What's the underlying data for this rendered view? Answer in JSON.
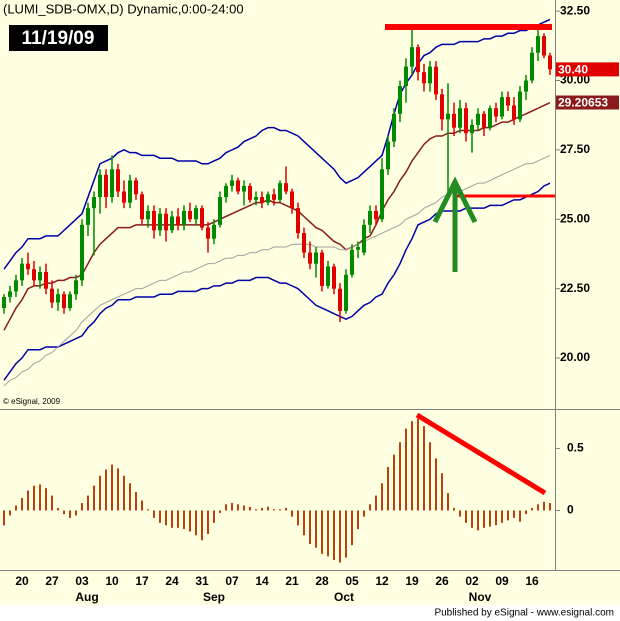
{
  "chart_data": [
    {
      "type": "candlestick",
      "title": "(LUMI_SDB-OMX,D) Dynamic,0:00-24:00",
      "date_label": "11/19/09",
      "credit": "© eSignal, 2009",
      "up_color": "#008a00",
      "down_color": "#e00000",
      "open": [
        21.8,
        22.2,
        22.4,
        22.8,
        23.4,
        23.2,
        22.8,
        23.1,
        22.5,
        22.0,
        22.3,
        21.8,
        22.3,
        22.8,
        24.8,
        25.4,
        25.8,
        26.6,
        25.8,
        26.8,
        26.0,
        25.6,
        26.4,
        25.9,
        25.0,
        25.3,
        24.6,
        25.2,
        24.6,
        25.1,
        24.8,
        25.3,
        25.0,
        25.4,
        24.7,
        24.3,
        24.8,
        25.8,
        26.2,
        26.4,
        26.0,
        26.2,
        25.7,
        25.8,
        25.6,
        25.9,
        25.7,
        26.3,
        26.0,
        25.4,
        24.5,
        23.8,
        23.4,
        23.8,
        22.6,
        23.3,
        22.5,
        21.7,
        23.0,
        23.9,
        23.8,
        24.8,
        25.3,
        25.0,
        26.8,
        27.8,
        28.8,
        29.8,
        30.5,
        31.2,
        30.3,
        29.9,
        30.5,
        29.5,
        28.6,
        28.8,
        28.3,
        29.0,
        28.1,
        28.4,
        28.8,
        28.3,
        29.0,
        28.7,
        29.4,
        29.1,
        28.6,
        29.6,
        30.0,
        31.0,
        31.6,
        30.9
      ],
      "high": [
        22.3,
        22.6,
        23.0,
        23.6,
        23.8,
        23.5,
        23.3,
        23.4,
        22.8,
        22.5,
        22.4,
        22.4,
        23.0,
        25.0,
        25.6,
        26.0,
        26.8,
        26.8,
        27.3,
        27.0,
        26.4,
        26.6,
        26.5,
        26.0,
        25.5,
        25.5,
        25.4,
        25.4,
        25.3,
        25.4,
        25.5,
        25.6,
        25.5,
        25.5,
        24.9,
        25.0,
        26.0,
        26.3,
        26.6,
        26.5,
        26.4,
        26.3,
        26.0,
        26.0,
        26.0,
        26.1,
        26.4,
        26.9,
        26.1,
        25.6,
        24.7,
        24.2,
        24.0,
        23.9,
        23.5,
        23.4,
        22.7,
        23.2,
        24.1,
        24.2,
        25.0,
        25.5,
        25.5,
        27.2,
        28.0,
        29.0,
        30.0,
        30.8,
        31.9,
        31.3,
        30.6,
        30.7,
        30.7,
        29.7,
        29.9,
        29.2,
        29.3,
        29.2,
        28.6,
        29.0,
        28.9,
        29.1,
        29.2,
        29.6,
        29.6,
        29.4,
        29.8,
        30.2,
        31.2,
        31.9,
        31.7,
        31.0
      ],
      "low": [
        21.6,
        22.0,
        22.2,
        22.6,
        23.0,
        22.6,
        22.5,
        22.3,
        21.8,
        21.7,
        21.6,
        21.7,
        22.1,
        22.6,
        24.4,
        23.7,
        25.2,
        25.4,
        25.6,
        25.8,
        25.4,
        25.4,
        25.7,
        24.8,
        24.7,
        24.3,
        24.4,
        24.2,
        24.5,
        24.6,
        24.6,
        24.9,
        24.8,
        24.6,
        23.8,
        24.1,
        24.7,
        25.6,
        26.0,
        25.9,
        25.5,
        25.6,
        25.5,
        25.4,
        25.5,
        25.5,
        25.6,
        25.9,
        25.2,
        24.3,
        23.6,
        23.2,
        22.9,
        22.4,
        22.5,
        22.3,
        21.3,
        21.6,
        22.9,
        23.6,
        23.7,
        24.5,
        24.8,
        24.9,
        26.6,
        27.6,
        28.5,
        29.2,
        30.2,
        30.0,
        29.6,
        29.6,
        29.3,
        28.2,
        26.0,
        28.0,
        28.1,
        27.8,
        27.4,
        28.2,
        28.0,
        28.2,
        28.5,
        28.6,
        28.9,
        28.4,
        28.5,
        29.3,
        29.9,
        30.7,
        30.8,
        30.2
      ],
      "close": [
        22.2,
        22.4,
        22.8,
        23.4,
        23.2,
        22.8,
        23.1,
        22.5,
        22.0,
        22.3,
        21.8,
        22.3,
        22.8,
        24.8,
        25.4,
        25.8,
        26.6,
        25.8,
        26.8,
        26.0,
        25.6,
        26.4,
        25.9,
        25.0,
        25.3,
        24.6,
        25.2,
        24.6,
        25.1,
        24.8,
        25.3,
        25.0,
        25.4,
        24.7,
        24.3,
        24.8,
        25.8,
        26.2,
        26.4,
        26.0,
        26.2,
        25.7,
        25.8,
        25.6,
        25.9,
        25.7,
        26.3,
        26.0,
        25.4,
        24.5,
        23.8,
        23.4,
        23.8,
        22.6,
        23.3,
        22.5,
        21.7,
        23.0,
        23.9,
        24.0,
        24.8,
        25.3,
        25.0,
        26.8,
        27.8,
        28.8,
        29.8,
        30.5,
        31.2,
        30.3,
        29.9,
        30.5,
        29.5,
        28.6,
        28.8,
        28.3,
        29.0,
        28.1,
        28.4,
        28.8,
        28.3,
        29.0,
        28.7,
        29.4,
        29.1,
        28.6,
        29.6,
        30.0,
        31.0,
        31.6,
        30.9,
        30.4
      ],
      "overlays": [
        {
          "color": "#0000a8",
          "values": [
            23.2,
            23.5,
            23.8,
            24.0,
            24.3,
            24.3,
            24.3,
            24.4,
            24.4,
            24.4,
            24.6,
            24.8,
            25.0,
            25.2,
            25.8,
            26.4,
            27.0,
            27.1,
            27.2,
            27.4,
            27.5,
            27.4,
            27.4,
            27.3,
            27.3,
            27.3,
            27.2,
            27.2,
            27.2,
            27.1,
            27.1,
            27.1,
            27.1,
            27.0,
            27.0,
            27.1,
            27.2,
            27.4,
            27.5,
            27.6,
            27.8,
            27.9,
            28.0,
            28.2,
            28.3,
            28.3,
            28.2,
            28.2,
            28.1,
            28.0,
            27.8,
            27.6,
            27.4,
            27.2,
            27.0,
            26.8,
            26.5,
            26.3,
            26.4,
            26.5,
            26.7,
            26.9,
            27.1,
            27.3,
            28.0,
            28.8,
            29.5,
            29.9,
            30.2,
            30.6,
            30.9,
            31.0,
            31.2,
            31.3,
            31.3,
            31.3,
            31.4,
            31.4,
            31.4,
            31.4,
            31.5,
            31.5,
            31.6,
            31.6,
            31.7,
            31.7,
            31.8,
            31.8,
            31.9,
            32.0,
            32.1,
            32.2
          ]
        },
        {
          "color": "#0000a8",
          "values": [
            19.2,
            19.5,
            19.8,
            20.0,
            20.3,
            20.3,
            20.3,
            20.4,
            20.4,
            20.4,
            20.5,
            20.6,
            20.7,
            20.8,
            21.1,
            21.3,
            21.6,
            21.8,
            21.9,
            22.1,
            22.1,
            22.1,
            22.2,
            22.2,
            22.2,
            22.2,
            22.3,
            22.3,
            22.3,
            22.4,
            22.4,
            22.4,
            22.4,
            22.5,
            22.5,
            22.6,
            22.6,
            22.7,
            22.7,
            22.8,
            22.8,
            22.8,
            22.9,
            22.9,
            22.9,
            22.8,
            22.7,
            22.7,
            22.6,
            22.5,
            22.3,
            22.1,
            21.9,
            21.8,
            21.7,
            21.6,
            21.5,
            21.4,
            21.5,
            21.7,
            21.9,
            22.0,
            22.2,
            22.3,
            22.7,
            23.0,
            23.4,
            23.9,
            24.3,
            24.8,
            24.9,
            25.0,
            25.2,
            25.3,
            25.3,
            25.3,
            25.3,
            25.4,
            25.4,
            25.4,
            25.4,
            25.5,
            25.5,
            25.5,
            25.6,
            25.7,
            25.7,
            25.8,
            25.9,
            26.0,
            26.2,
            26.3
          ]
        },
        {
          "color": "#8b1a1a",
          "values": [
            21.0,
            21.4,
            21.8,
            22.1,
            22.5,
            22.6,
            22.6,
            22.7,
            22.7,
            22.8,
            22.8,
            22.9,
            22.9,
            23.0,
            23.4,
            23.8,
            24.1,
            24.3,
            24.5,
            24.7,
            24.7,
            24.7,
            24.8,
            24.8,
            24.8,
            24.8,
            24.8,
            24.8,
            24.8,
            24.8,
            24.8,
            24.8,
            24.8,
            24.8,
            24.8,
            24.9,
            25.0,
            25.1,
            25.2,
            25.3,
            25.4,
            25.5,
            25.6,
            25.6,
            25.7,
            25.6,
            25.6,
            25.5,
            25.4,
            25.3,
            25.1,
            24.9,
            24.7,
            24.6,
            24.4,
            24.2,
            24.1,
            23.9,
            24.0,
            24.1,
            24.3,
            24.4,
            24.8,
            25.3,
            25.7,
            26.0,
            26.4,
            26.7,
            27.1,
            27.4,
            27.7,
            27.9,
            28.0,
            28.0,
            28.1,
            28.1,
            28.2,
            28.2,
            28.2,
            28.2,
            28.3,
            28.3,
            28.4,
            28.5,
            28.5,
            28.6,
            28.7,
            28.8,
            28.9,
            29.0,
            29.1,
            29.2
          ]
        },
        {
          "color": "#a0a0a0",
          "values": [
            19.0,
            19.2,
            19.3,
            19.5,
            19.6,
            19.8,
            19.9,
            20.1,
            20.2,
            20.4,
            20.6,
            20.8,
            21.0,
            21.3,
            21.5,
            21.7,
            21.9,
            22.0,
            22.1,
            22.2,
            22.3,
            22.4,
            22.5,
            22.5,
            22.6,
            22.7,
            22.8,
            22.8,
            22.9,
            23.0,
            23.1,
            23.1,
            23.2,
            23.3,
            23.4,
            23.4,
            23.5,
            23.6,
            23.6,
            23.7,
            23.7,
            23.8,
            23.8,
            23.9,
            23.9,
            24.0,
            24.0,
            24.0,
            24.1,
            24.1,
            24.1,
            24.1,
            24.0,
            24.0,
            24.0,
            24.0,
            23.9,
            23.9,
            24.0,
            24.1,
            24.2,
            24.3,
            24.4,
            24.5,
            24.6,
            24.7,
            24.8,
            25.0,
            25.1,
            25.2,
            25.4,
            25.5,
            25.6,
            25.8,
            25.9,
            26.0,
            26.0,
            26.1,
            26.2,
            26.3,
            26.3,
            26.4,
            26.5,
            26.6,
            26.7,
            26.8,
            26.9,
            27.0,
            27.0,
            27.1,
            27.2,
            27.3
          ]
        }
      ],
      "value_labels": [
        {
          "value": 30.4,
          "label": "30.40",
          "color": "#e00000"
        },
        {
          "value": 29.20653,
          "label": "29.20653",
          "color": "#8b1a1a"
        }
      ],
      "ylim": [
        18.2,
        32.9
      ],
      "yticks": [
        {
          "value": 32.5,
          "label": "32.50"
        },
        {
          "value": 30,
          "label": "30.00"
        },
        {
          "value": 27.5,
          "label": "27.50"
        },
        {
          "value": 25,
          "label": "25.00"
        },
        {
          "value": 22.5,
          "label": "22.50"
        },
        {
          "value": 20,
          "label": "20.00"
        }
      ]
    },
    {
      "type": "bar",
      "categories": [
        null,
        null,
        null,
        "20",
        null,
        null,
        null,
        null,
        "27",
        null,
        null,
        null,
        null,
        "03",
        null,
        null,
        null,
        null,
        "10",
        null,
        null,
        null,
        null,
        "17",
        null,
        null,
        null,
        null,
        "24",
        null,
        null,
        null,
        null,
        "31",
        null,
        null,
        null,
        null,
        "07",
        null,
        null,
        null,
        null,
        "14",
        null,
        null,
        null,
        null,
        "21",
        null,
        null,
        null,
        null,
        "28",
        null,
        null,
        null,
        null,
        "05",
        null,
        null,
        null,
        null,
        "12",
        null,
        null,
        null,
        null,
        "19",
        null,
        null,
        null,
        null,
        "26",
        null,
        null,
        null,
        null,
        "02",
        null,
        null,
        null,
        null,
        "09",
        null,
        null,
        null,
        null,
        "16",
        null,
        null,
        null
      ],
      "months": [
        "Aug",
        "Sep",
        "Oct",
        "Nov"
      ],
      "values": [
        -0.12,
        -0.04,
        0.04,
        0.1,
        0.16,
        0.2,
        0.21,
        0.18,
        0.12,
        0.02,
        -0.03,
        -0.06,
        -0.04,
        0.06,
        0.12,
        0.2,
        0.28,
        0.33,
        0.37,
        0.34,
        0.28,
        0.22,
        0.15,
        0.08,
        0.01,
        -0.06,
        -0.1,
        -0.12,
        -0.14,
        -0.14,
        -0.15,
        -0.17,
        -0.2,
        -0.24,
        -0.19,
        -0.1,
        -0.02,
        0.05,
        0.06,
        0.05,
        0.04,
        0.03,
        0.01,
        0.02,
        0.03,
        0.01,
        0.01,
        0.02,
        -0.05,
        -0.12,
        -0.2,
        -0.27,
        -0.3,
        -0.35,
        -0.37,
        -0.4,
        -0.42,
        -0.38,
        -0.28,
        -0.15,
        -0.05,
        0.05,
        0.12,
        0.22,
        0.35,
        0.45,
        0.55,
        0.66,
        0.72,
        0.74,
        0.68,
        0.55,
        0.42,
        0.3,
        0.14,
        0.02,
        -0.05,
        -0.1,
        -0.14,
        -0.16,
        -0.14,
        -0.13,
        -0.12,
        -0.1,
        -0.08,
        -0.06,
        -0.09,
        -0.03,
        0.02,
        0.05,
        0.07,
        0.06
      ],
      "color": "#c0400c",
      "ylim": [
        -0.48,
        0.81
      ],
      "yticks": [
        0.5,
        0
      ],
      "footer": "Published by eSignal - www.esignal.com"
    }
  ]
}
